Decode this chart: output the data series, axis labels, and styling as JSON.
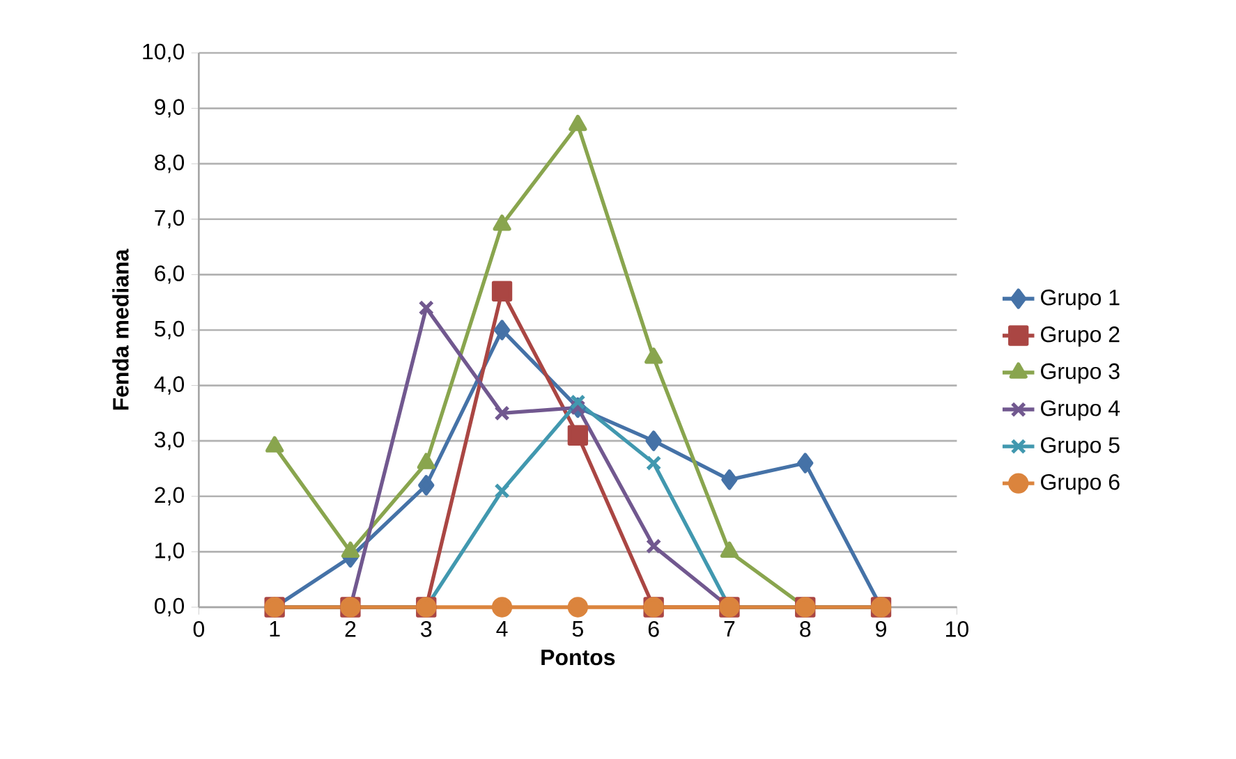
{
  "chart_data": {
    "type": "line",
    "xlabel": "Pontos",
    "ylabel": "Fenda mediana",
    "x": [
      1,
      2,
      3,
      4,
      5,
      6,
      7,
      8,
      9
    ],
    "series": [
      {
        "name": "Grupo 1",
        "color": "#4572a7",
        "marker": "diamond",
        "values": [
          0,
          0.9,
          2.2,
          5.0,
          3.6,
          3.0,
          2.3,
          2.6,
          0
        ]
      },
      {
        "name": "Grupo 2",
        "color": "#aa4643",
        "marker": "square",
        "values": [
          0,
          0,
          0,
          5.7,
          3.1,
          0,
          0,
          0,
          0
        ]
      },
      {
        "name": "Grupo 3",
        "color": "#89a54e",
        "marker": "triangle",
        "values": [
          2.9,
          1.0,
          2.6,
          6.9,
          8.7,
          4.5,
          1.0,
          0,
          0
        ]
      },
      {
        "name": "Grupo 4",
        "color": "#71588f",
        "marker": "cross",
        "values": [
          0,
          0,
          5.4,
          3.5,
          3.6,
          1.1,
          0,
          0,
          0
        ]
      },
      {
        "name": "Grupo 5",
        "color": "#4198af",
        "marker": "cross",
        "values": [
          0,
          0,
          0,
          2.1,
          3.7,
          2.6,
          0,
          0,
          0
        ]
      },
      {
        "name": "Grupo 6",
        "color": "#db843d",
        "marker": "circle",
        "values": [
          0,
          0,
          0,
          0,
          0,
          0,
          0,
          0,
          0
        ]
      }
    ],
    "xlim": [
      0,
      10
    ],
    "xticks": [
      0,
      1,
      2,
      3,
      4,
      5,
      6,
      7,
      8,
      9,
      10
    ],
    "ylim": [
      0,
      10
    ],
    "yticks": [
      {
        "value": 0,
        "label": "0,0"
      },
      {
        "value": 1,
        "label": "1,0"
      },
      {
        "value": 2,
        "label": "2,0"
      },
      {
        "value": 3,
        "label": "3,0"
      },
      {
        "value": 4,
        "label": "4,0"
      },
      {
        "value": 5,
        "label": "5,0"
      },
      {
        "value": 6,
        "label": "6,0"
      },
      {
        "value": 7,
        "label": "7,0"
      },
      {
        "value": 8,
        "label": "8,0"
      },
      {
        "value": 9,
        "label": "9,0"
      },
      {
        "value": 10,
        "label": "10,0"
      }
    ],
    "grid": "y",
    "legend": "right",
    "line_style": "solid"
  }
}
